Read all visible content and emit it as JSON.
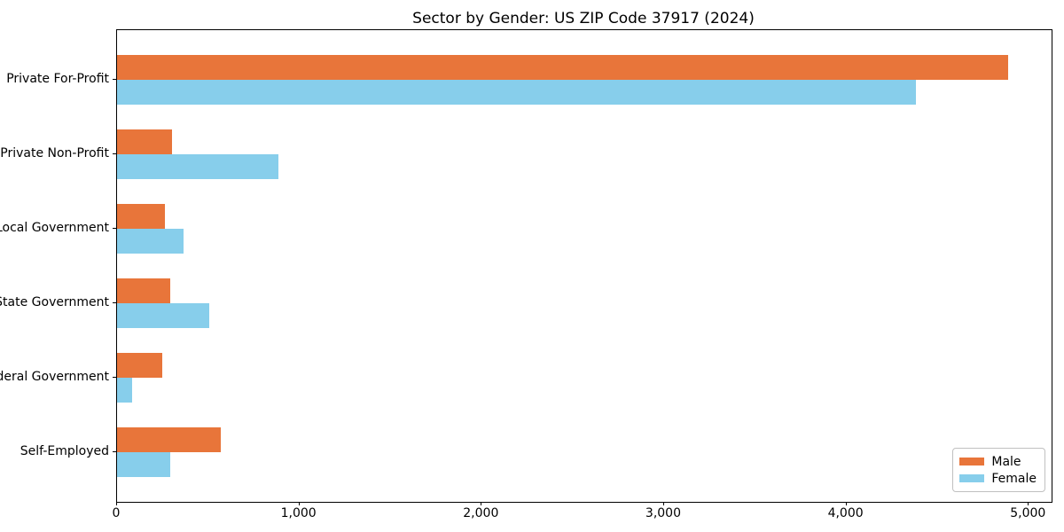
{
  "chart_data": {
    "type": "bar",
    "orientation": "horizontal",
    "title": "Sector by Gender: US ZIP Code 37917 (2024)",
    "categories": [
      "Private For-Profit",
      "Private Non-Profit",
      "Local Government",
      "State Government",
      "Federal Government",
      "Self-Employed"
    ],
    "series": [
      {
        "name": "Male",
        "color": "#e8753a",
        "values": [
          4885,
          300,
          265,
          290,
          250,
          570
        ]
      },
      {
        "name": "Female",
        "color": "#87ceeb",
        "values": [
          4380,
          885,
          365,
          505,
          85,
          290
        ]
      }
    ],
    "xlabel": "",
    "ylabel": "",
    "xlim": [
      0,
      5125
    ],
    "xticks": [
      0,
      1000,
      2000,
      3000,
      4000,
      5000
    ],
    "xtick_labels": [
      "0",
      "1,000",
      "2,000",
      "3,000",
      "4,000",
      "5,000"
    ],
    "grid": false,
    "legend_position": "lower right",
    "plot_background": "#ffffff",
    "spine_color": "#000000"
  }
}
